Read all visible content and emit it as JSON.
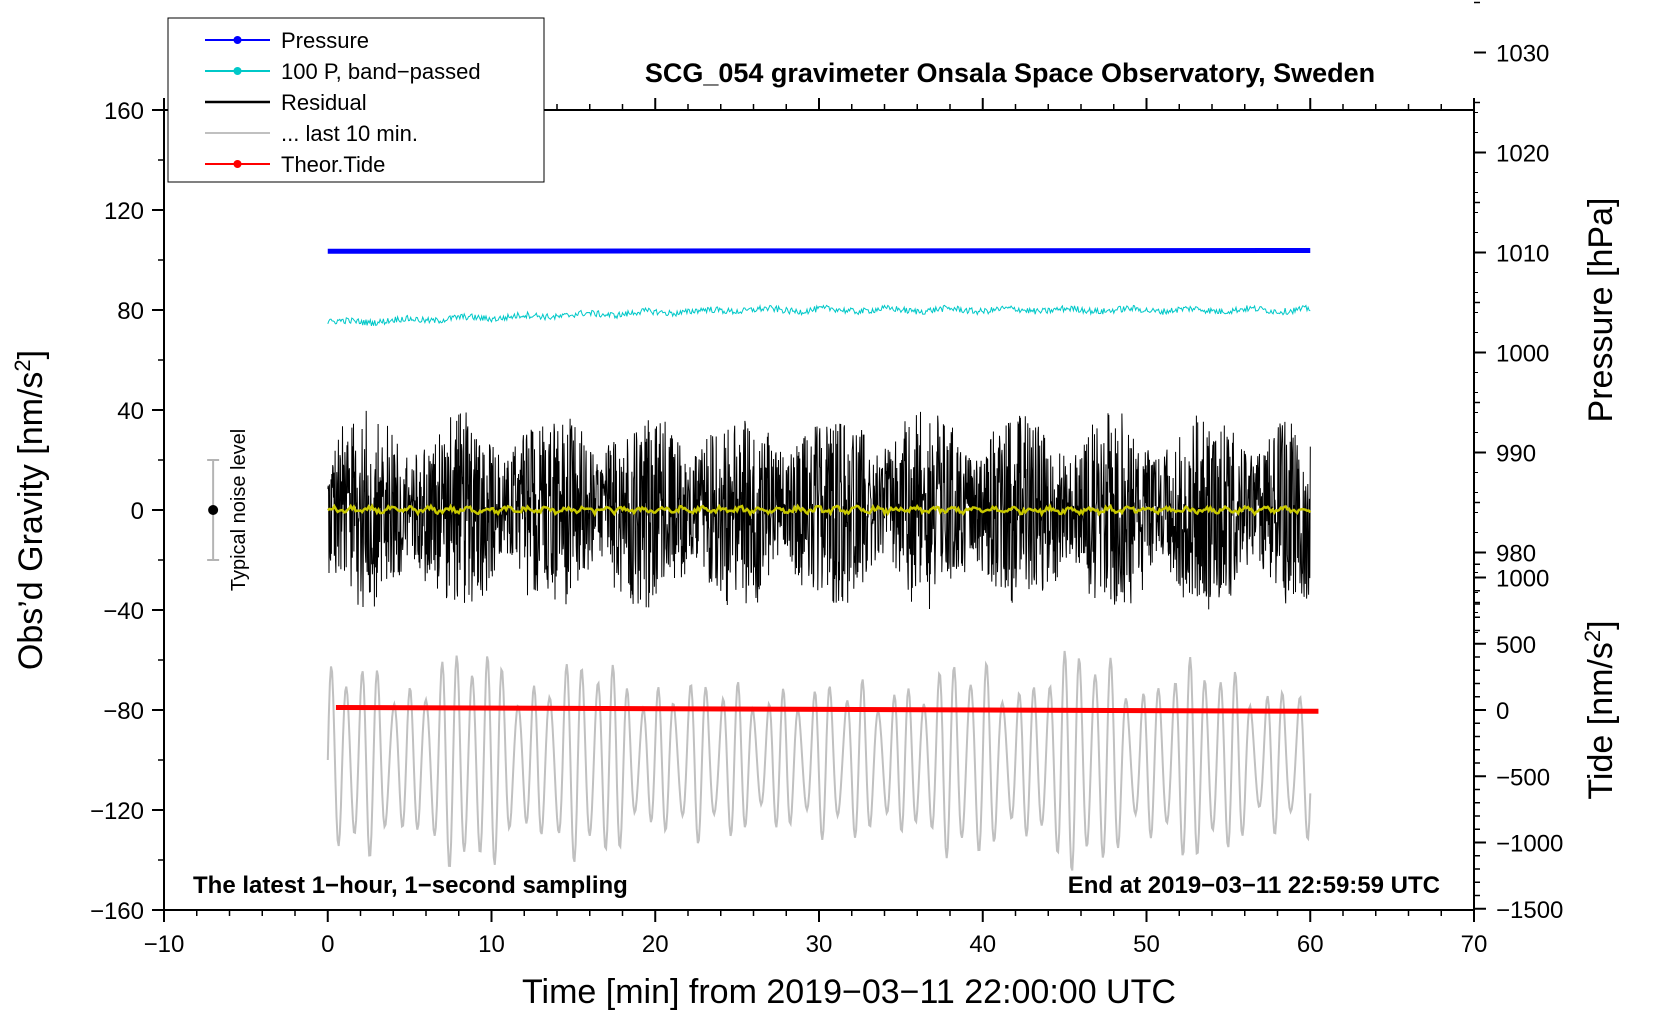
{
  "chart_data": {
    "type": "line",
    "title": "SCG_054 gravimeter Onsala Space Observatory, Sweden",
    "xlabel": "Time [min] from 2019−03−11 22:00:00 UTC",
    "xlim": [
      -10,
      70
    ],
    "xticks": [
      -10,
      0,
      10,
      20,
      30,
      40,
      50,
      60,
      70
    ],
    "x_tick_labels": [
      "−10",
      "0",
      "10",
      "20",
      "30",
      "40",
      "50",
      "60",
      "70"
    ],
    "left_axis": {
      "label": "Obs’d Gravity [nm/s",
      "label_sup": "2",
      "label_end": "]",
      "ylim": [
        -160,
        160
      ],
      "ticks": [
        160,
        120,
        80,
        40,
        0,
        -40,
        -80,
        -120,
        -160
      ],
      "tick_labels": [
        "160",
        "120",
        "80",
        "40",
        "0",
        "−40",
        "−80",
        "−120",
        "−160"
      ]
    },
    "pressure_axis": {
      "label": "Pressure [hPa]",
      "ticks": [
        1030,
        1020,
        1010,
        1000,
        990,
        980
      ],
      "tick_labels": [
        "1030",
        "1020",
        "1010",
        "1000",
        "990",
        "980"
      ],
      "gravity_at_1010": 103,
      "gravity_per_hpa": 4
    },
    "tide_axis": {
      "label": "Tide [nm/s",
      "label_sup": "2",
      "label_end": "]",
      "ticks": [
        1000,
        500,
        0,
        -500,
        -1000,
        -1500
      ],
      "tick_labels": [
        "1000",
        "500",
        "0",
        "−500",
        "−1000",
        "−1500"
      ],
      "gravity_at_0": -80,
      "gravity_per_1000": 53
    },
    "series": [
      {
        "name": "Pressure",
        "color": "#0000ff",
        "x_range": [
          0,
          60
        ],
        "level_hpa": 1010.2,
        "style": "line with dots"
      },
      {
        "name": "100 P, band−passed",
        "color": "#00c8c8",
        "x_range": [
          0,
          60
        ],
        "start_value": 75,
        "end_value": 80,
        "style": "noisy line"
      },
      {
        "name": "Residual",
        "color": "#000000",
        "x_range": [
          0,
          60
        ],
        "mean": 0,
        "amplitude": 40,
        "style": "noisy line"
      },
      {
        "name": "... last 10 min.",
        "color": "#c0c0c0",
        "x_range": [
          0,
          60
        ],
        "mean": -100,
        "amplitude": 25,
        "style": "oscillating line"
      },
      {
        "name": "Theor.Tide",
        "color": "#ff0000",
        "x_range": [
          0.5,
          60.5
        ],
        "start_value": -79,
        "end_value": -80.5,
        "style": "line with dots"
      },
      {
        "name": "Residual (smoothed)",
        "color": "#c8c800",
        "x_range": [
          0,
          60
        ],
        "mean": 0,
        "style": "line",
        "in_legend": false
      }
    ],
    "noise_level": {
      "label": "Typical noise level",
      "x": -7,
      "center": 0,
      "low": -20,
      "high": 20
    },
    "annotations": {
      "bottom_left": "The latest 1−hour, 1−second sampling",
      "bottom_right": "End at 2019−03−11 22:59:59 UTC"
    },
    "legend": {
      "placement": "top-left, outside",
      "entries": [
        "Pressure",
        "100 P, band−passed",
        "Residual",
        "... last 10 min.",
        "Theor.Tide"
      ]
    }
  }
}
